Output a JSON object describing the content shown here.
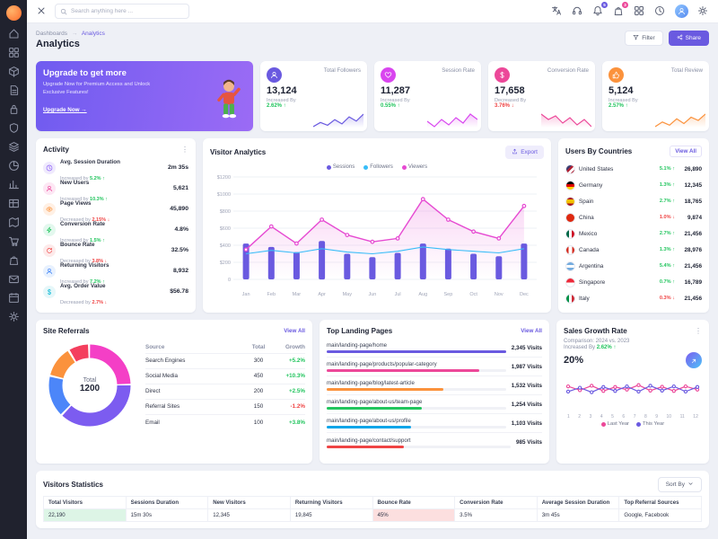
{
  "header": {
    "search_placeholder": "Search anything here ...",
    "icons": [
      {
        "name": "translate"
      },
      {
        "name": "headset"
      },
      {
        "name": "bell",
        "badge": "5",
        "badge_color": "#6a5ae0"
      },
      {
        "name": "bag",
        "badge": "3",
        "badge_color": "#ec4899"
      },
      {
        "name": "grid"
      },
      {
        "name": "clock"
      },
      {
        "name": "avatar"
      },
      {
        "name": "gear"
      }
    ]
  },
  "sidebar": {
    "items": [
      "home",
      "grid",
      "box",
      "doc",
      "lock",
      "shield",
      "layers",
      "pie",
      "chart",
      "table",
      "map",
      "cart",
      "bag",
      "mail",
      "calendar",
      "gear"
    ]
  },
  "breadcrumb": {
    "items": [
      "Dashboards",
      "Analytics"
    ],
    "page_title": "Analytics"
  },
  "actions": {
    "filter": "Filter",
    "share": "Share"
  },
  "promo": {
    "title": "Upgrade to get more",
    "description": "Upgrade Now for Premium Access and Unlock Exclusive Features!",
    "cta": "Upgrade Now"
  },
  "stat_cards": [
    {
      "label": "Total Followers",
      "value": "13,124",
      "change_label": "Increased By",
      "change": "2.62%",
      "dir": "up",
      "color": "#6a5ae0",
      "icon": "users",
      "spark": [
        12,
        18,
        14,
        22,
        16,
        26,
        20,
        30
      ]
    },
    {
      "label": "Session Rate",
      "value": "11,287",
      "change_label": "Increased By",
      "change": "0.55%",
      "dir": "up",
      "color": "#d946ef",
      "icon": "heart",
      "spark": [
        20,
        14,
        22,
        16,
        24,
        18,
        28,
        22
      ]
    },
    {
      "label": "Conversion Rate",
      "value": "17,658",
      "change_label": "Decreased By",
      "change": "3.76%",
      "dir": "down",
      "color": "#ec4899",
      "icon": "dollar",
      "spark": [
        26,
        20,
        24,
        16,
        22,
        14,
        20,
        12
      ]
    },
    {
      "label": "Total Review",
      "value": "5,124",
      "change_label": "Increased By",
      "change": "2.57%",
      "dir": "up",
      "color": "#fb923c",
      "icon": "thumb",
      "spark": [
        14,
        20,
        16,
        24,
        18,
        26,
        22,
        30
      ]
    }
  ],
  "activity": {
    "title": "Activity",
    "items": [
      {
        "label": "Avg. Session Duration",
        "change_label": "Increased by",
        "change": "5.2%",
        "dir": "up",
        "value": "2m 35s",
        "icon": "clock",
        "tint": "#efeafd",
        "color": "#8b5cf6"
      },
      {
        "label": "New Users",
        "change_label": "Increased by",
        "change": "10.3%",
        "dir": "up",
        "value": "5,621",
        "icon": "users",
        "tint": "#fde7f4",
        "color": "#ec4899"
      },
      {
        "label": "Page Views",
        "change_label": "Decreased by",
        "change": "2.15%",
        "dir": "down",
        "value": "45,890",
        "icon": "eye",
        "tint": "#fff0e4",
        "color": "#fb923c"
      },
      {
        "label": "Conversion Rate",
        "change_label": "Increased by",
        "change": "1.5%",
        "dir": "up",
        "value": "4.8%",
        "icon": "zap",
        "tint": "#e3f8ee",
        "color": "#22c55e"
      },
      {
        "label": "Bounce Rate",
        "change_label": "Decreased by",
        "change": "3.8%",
        "dir": "down",
        "value": "32.5%",
        "icon": "refresh",
        "tint": "#fdeaea",
        "color": "#ef4444"
      },
      {
        "label": "Returning Visitors",
        "change_label": "Increased by",
        "change": "7.2%",
        "dir": "up",
        "value": "8,932",
        "icon": "users",
        "tint": "#e8f1fe",
        "color": "#3b82f6"
      },
      {
        "label": "Avg. Order Value",
        "change_label": "Decreased by",
        "change": "2.7%",
        "dir": "down",
        "value": "$56.78",
        "icon": "dollar",
        "tint": "#e6f7f9",
        "color": "#06b6d4"
      }
    ]
  },
  "visitor_analytics": {
    "title": "Visitor Analytics",
    "export_label": "Export"
  },
  "users_by_countries": {
    "title": "Users By Countries",
    "view_all": "View All",
    "rows": [
      {
        "country": "United States",
        "change": "5.1%",
        "dir": "up",
        "value": "26,890",
        "flag": "linear-gradient(135deg,#3c3b6e 35%,#b22234 35%,#b22234 55%,#ffffff 55%,#ffffff 75%,#b22234 75%)"
      },
      {
        "country": "Germany",
        "change": "1.3%",
        "dir": "up",
        "value": "12,345",
        "flag": "linear-gradient(180deg,#000000 33%,#dd0000 33%,#dd0000 66%,#ffce00 66%)"
      },
      {
        "country": "Spain",
        "change": "2.7%",
        "dir": "up",
        "value": "18,765",
        "flag": "linear-gradient(180deg,#aa151b 25%,#f1bf00 25%,#f1bf00 75%,#aa151b 75%)"
      },
      {
        "country": "China",
        "change": "1.0%",
        "dir": "down",
        "value": "9,874",
        "flag": "linear-gradient(180deg,#de2910,#de2910)"
      },
      {
        "country": "Mexico",
        "change": "2.7%",
        "dir": "up",
        "value": "21,456",
        "flag": "linear-gradient(90deg,#006847 33%,#ffffff 33%,#ffffff 66%,#ce1126 66%)"
      },
      {
        "country": "Canada",
        "change": "1.3%",
        "dir": "up",
        "value": "28,976",
        "flag": "linear-gradient(90deg,#d52b1e 30%,#ffffff 30%,#ffffff 70%,#d52b1e 70%)"
      },
      {
        "country": "Argentina",
        "change": "5.4%",
        "dir": "up",
        "value": "21,456",
        "flag": "linear-gradient(180deg,#74acdf 33%,#ffffff 33%,#ffffff 66%,#74acdf 66%)"
      },
      {
        "country": "Singapore",
        "change": "0.7%",
        "dir": "up",
        "value": "16,789",
        "flag": "linear-gradient(180deg,#ed2939 50%,#ffffff 50%)"
      },
      {
        "country": "Italy",
        "change": "0.3%",
        "dir": "down",
        "value": "21,456",
        "flag": "linear-gradient(90deg,#009246 33%,#ffffff 33%,#ffffff 66%,#ce2b37 66%)"
      }
    ]
  },
  "site_referrals": {
    "title": "Site Referrals",
    "view_all": "View All",
    "center_label": "Total",
    "center_value": "1200",
    "columns": [
      "Source",
      "Total",
      "Growth"
    ],
    "rows": [
      {
        "source": "Search Engines",
        "total": "300",
        "growth": "+5.2%",
        "dir": "up",
        "color": "#f43fc6"
      },
      {
        "source": "Social Media",
        "total": "450",
        "growth": "+10.3%",
        "dir": "up",
        "color": "#7c5cf0"
      },
      {
        "source": "Direct",
        "total": "200",
        "growth": "+2.5%",
        "dir": "up",
        "color": "#4c86f9"
      },
      {
        "source": "Referral Sites",
        "total": "150",
        "growth": "-1.2%",
        "dir": "down",
        "color": "#fb923c"
      },
      {
        "source": "Email",
        "total": "100",
        "growth": "+3.8%",
        "dir": "up",
        "color": "#f43f5e"
      }
    ]
  },
  "top_landing_pages": {
    "title": "Top Landing Pages",
    "view_all": "View All",
    "rows": [
      {
        "path": "main/landing-page/home",
        "visits": "2,345 Visits",
        "value": 2345,
        "color": "#6a5ae0"
      },
      {
        "path": "main/landing-page/products/popular-category",
        "visits": "1,987 Visits",
        "value": 1987,
        "color": "#ec4899"
      },
      {
        "path": "main/landing-page/blog/latest-article",
        "visits": "1,532 Visits",
        "value": 1532,
        "color": "#fb923c"
      },
      {
        "path": "main/landing-page/about-us/team-page",
        "visits": "1,254 Visits",
        "value": 1254,
        "color": "#22c55e"
      },
      {
        "path": "main/landing-page/about-us/profile",
        "visits": "1,103 Visits",
        "value": 1103,
        "color": "#0ea5e9"
      },
      {
        "path": "main/landing-page/contact/support",
        "visits": "985 Visits",
        "value": 985,
        "color": "#ef4444"
      }
    ]
  },
  "sales_growth": {
    "title": "Sales Growth Rate",
    "comparison": "Comparison: 2024 vs. 2023",
    "change_label": "Increased By",
    "change": "2.62%",
    "dir": "up",
    "rate": "20%",
    "legend": [
      "Last Year",
      "This Year"
    ]
  },
  "visitors_statistics": {
    "title": "Visitors Statistics",
    "sort_by": "Sort By",
    "columns": [
      "Total Visitors",
      "Sessions Duration",
      "New Visitors",
      "Returning Visitors",
      "Bounce Rate",
      "Conversion Rate",
      "Average Session Duration",
      "Top Referral Sources"
    ],
    "row": [
      "22,190",
      "15m 30s",
      "12,345",
      "19,845",
      "45%",
      "3.5%",
      "3m 45s",
      "Google, Facebook"
    ],
    "cell_highlights": {
      "0": "#ddf5e6",
      "4": "#fcdfdf"
    }
  },
  "chart_data": [
    {
      "id": "visitor-analytics",
      "type": "bar+line",
      "title": "Visitor Analytics",
      "categories": [
        "Jan",
        "Feb",
        "Mar",
        "Apr",
        "May",
        "Jun",
        "Jul",
        "Aug",
        "Sep",
        "Oct",
        "Nov",
        "Dec"
      ],
      "series": [
        {
          "name": "Sessions",
          "type": "bar",
          "color": "#6a5ae0",
          "values": [
            420,
            380,
            320,
            450,
            300,
            260,
            310,
            420,
            360,
            300,
            270,
            420
          ]
        },
        {
          "name": "Followers",
          "type": "line",
          "color": "#38bdf8",
          "values": [
            300,
            340,
            310,
            360,
            320,
            300,
            330,
            380,
            350,
            330,
            310,
            360
          ]
        },
        {
          "name": "Viewers",
          "type": "line",
          "color": "#e64ad2",
          "values": [
            350,
            620,
            420,
            700,
            520,
            440,
            480,
            940,
            700,
            560,
            480,
            860
          ]
        }
      ],
      "ylim": [
        0,
        1200
      ],
      "yticks": [
        "0",
        "$200",
        "$400",
        "$600",
        "$800",
        "$1000",
        "$1200"
      ],
      "legend_position": "top",
      "grid": true
    },
    {
      "id": "site-referrals",
      "type": "pie",
      "title": "Site Referrals",
      "labels": [
        "Search Engines",
        "Social Media",
        "Direct",
        "Referral Sites",
        "Email"
      ],
      "values": [
        300,
        450,
        200,
        150,
        100
      ],
      "colors": [
        "#f43fc6",
        "#7c5cf0",
        "#4c86f9",
        "#fb923c",
        "#f43f5e"
      ],
      "total_label": "Total",
      "total_value": 1200
    },
    {
      "id": "sales-growth",
      "type": "line",
      "title": "Sales Growth Rate",
      "x": [
        1,
        2,
        3,
        4,
        5,
        6,
        7,
        8,
        9,
        10,
        11,
        12
      ],
      "series": [
        {
          "name": "Last Year",
          "color": "#ec4899",
          "values": [
            58,
            46,
            60,
            44,
            56,
            48,
            62,
            45,
            57,
            44,
            58,
            48
          ]
        },
        {
          "name": "This Year",
          "color": "#6a5ae0",
          "values": [
            42,
            54,
            40,
            56,
            44,
            58,
            42,
            60,
            45,
            58,
            42,
            56
          ]
        }
      ],
      "ylim": [
        0,
        100
      ],
      "legend_position": "bottom",
      "grid": false
    }
  ]
}
